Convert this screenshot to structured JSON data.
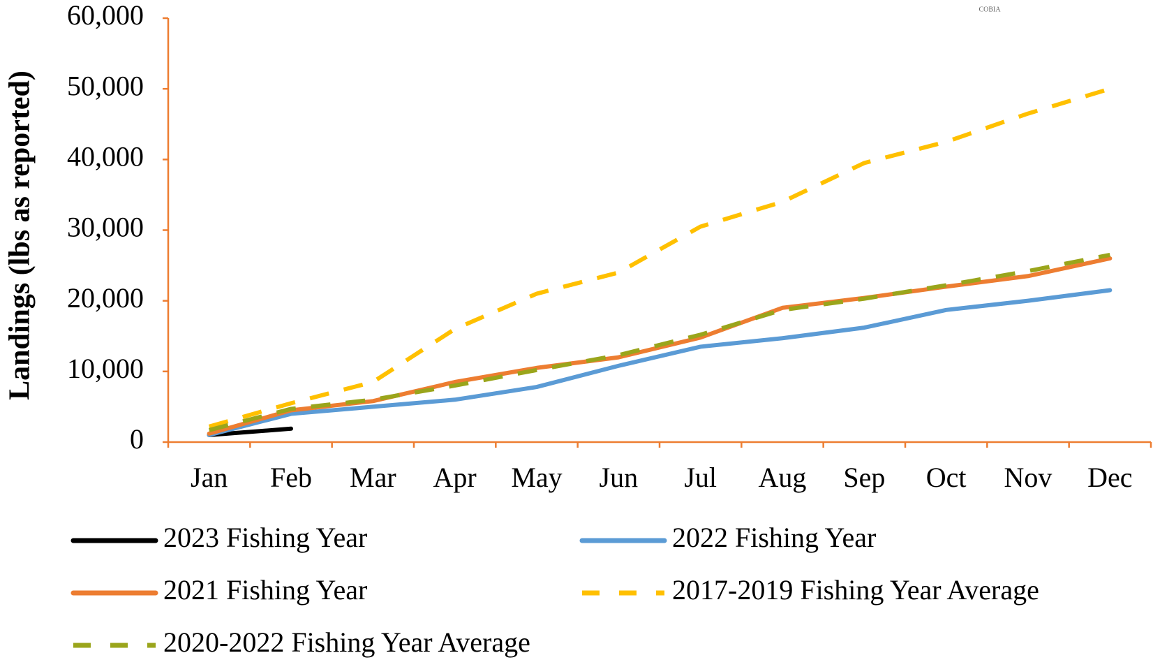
{
  "chart_data": {
    "type": "line",
    "y_label": "Landings (lbs as reported)",
    "annotation": "COBIA",
    "categories": [
      "Jan",
      "Feb",
      "Mar",
      "Apr",
      "May",
      "Jun",
      "Jul",
      "Aug",
      "Sep",
      "Oct",
      "Nov",
      "Dec"
    ],
    "ylim": [
      0,
      60000
    ],
    "yticks": [
      0,
      {
        "value": 10000,
        "label": "10,000"
      },
      {
        "value": 20000,
        "label": "20,000"
      },
      {
        "value": 30000,
        "label": "30,000"
      },
      {
        "value": 40000,
        "label": "40,000"
      },
      {
        "value": 50000,
        "label": "50,000"
      },
      {
        "value": 60000,
        "label": "60,000"
      }
    ],
    "axis_color": "#ed7d31",
    "series": [
      {
        "name": "2023 Fishing Year",
        "color": "#000000",
        "style": "solid",
        "values": [
          1000,
          1900,
          null,
          null,
          null,
          null,
          null,
          null,
          null,
          null,
          null,
          null
        ]
      },
      {
        "name": "2022 Fishing Year",
        "color": "#5b9bd5",
        "style": "solid",
        "values": [
          1000,
          4000,
          5000,
          6000,
          7800,
          10800,
          13500,
          14700,
          16200,
          18700,
          20000,
          21500
        ]
      },
      {
        "name": "2021 Fishing Year",
        "color": "#ed7d31",
        "style": "solid",
        "values": [
          1200,
          4500,
          5800,
          8500,
          10500,
          12000,
          14800,
          19000,
          20400,
          22000,
          23500,
          26000
        ]
      },
      {
        "name": "2017-2019 Fishing Year Average",
        "color": "#ffc000",
        "style": "dashed",
        "values": [
          2200,
          5500,
          8500,
          16000,
          21000,
          24000,
          30500,
          34000,
          39500,
          42500,
          46500,
          50000
        ]
      },
      {
        "name": "2020-2022 Fishing Year Average",
        "color": "#9aa51b",
        "style": "dashed",
        "values": [
          1700,
          4700,
          6000,
          8000,
          10200,
          12300,
          15200,
          18700,
          20300,
          22200,
          24200,
          26500
        ]
      }
    ]
  }
}
